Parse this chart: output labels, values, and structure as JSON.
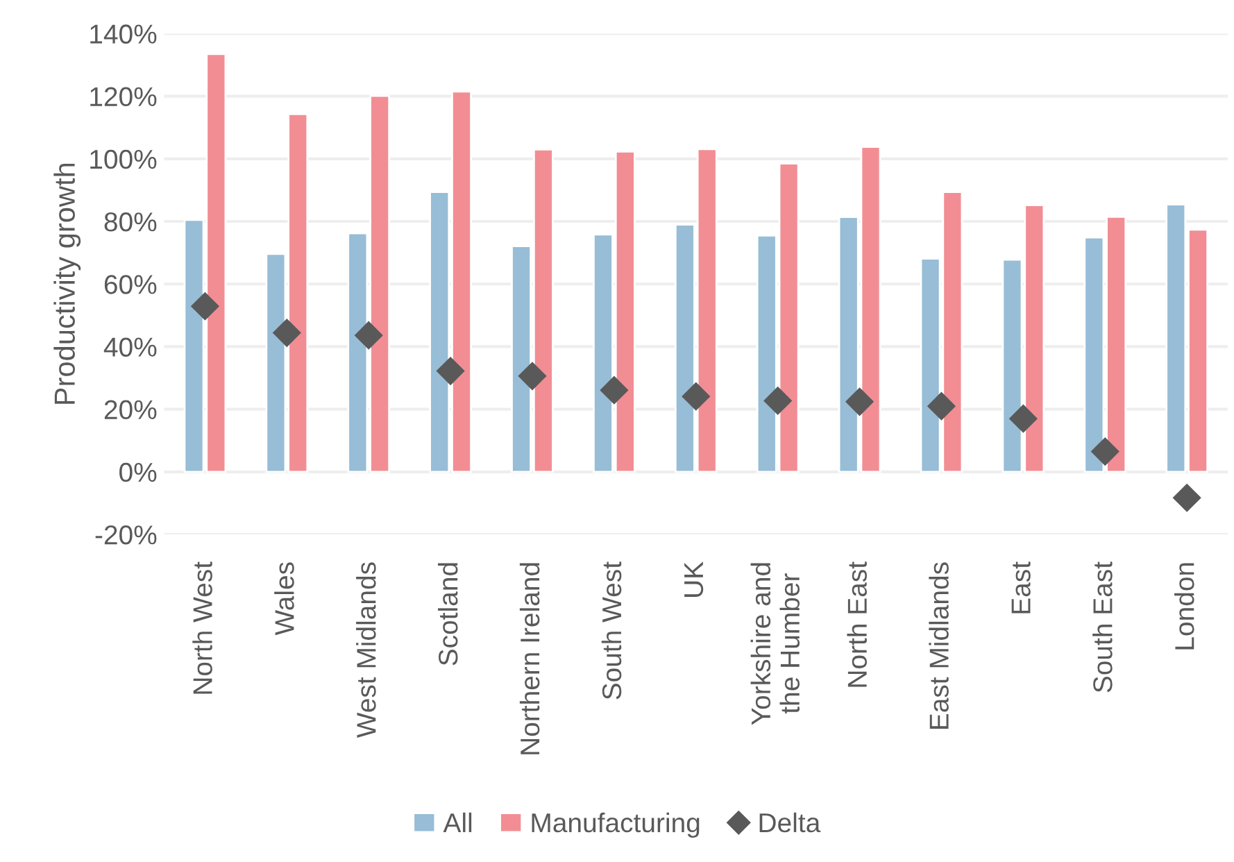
{
  "chart_data": {
    "type": "bar",
    "ylabel": "Productivity growth",
    "categories": [
      "North West",
      "Wales",
      "West Midlands",
      "Scotland",
      "Northern Ireland",
      "South West",
      "UK",
      "Yorkshire and\nthe Humber",
      "North East",
      "East Midlands",
      "East",
      "South East",
      "London"
    ],
    "series": [
      {
        "name": "All",
        "color": "#97bdd7",
        "values": [
          80.5,
          69.6,
          76.2,
          89.4,
          72.1,
          75.8,
          79.0,
          75.5,
          81.4,
          68.1,
          67.8,
          74.9,
          85.4
        ]
      },
      {
        "name": "Manufacturing",
        "color": "#f28d94",
        "values": [
          133.5,
          114.3,
          120.1,
          121.5,
          103.0,
          102.3,
          103.1,
          98.5,
          103.8,
          89.4,
          85.2,
          81.5,
          77.4
        ]
      },
      {
        "name": "Delta",
        "type": "scatter",
        "color": "#595959",
        "values": [
          52.9,
          44.4,
          43.6,
          32.2,
          30.6,
          26.1,
          24.1,
          22.7,
          22.4,
          21.0,
          17.0,
          6.5,
          -8.3
        ]
      }
    ],
    "ylim": [
      -20,
      140
    ],
    "yticks": [
      {
        "value": -20,
        "label": "-20%"
      },
      {
        "value": 0,
        "label": "0%"
      },
      {
        "value": 20,
        "label": "20%"
      },
      {
        "value": 40,
        "label": "40%"
      },
      {
        "value": 60,
        "label": "60%"
      },
      {
        "value": 80,
        "label": "80%"
      },
      {
        "value": 100,
        "label": "100%"
      },
      {
        "value": 120,
        "label": "120%"
      },
      {
        "value": 140,
        "label": "140%"
      }
    ],
    "grid": "y",
    "legend": "bottom",
    "marker": "diamond"
  }
}
